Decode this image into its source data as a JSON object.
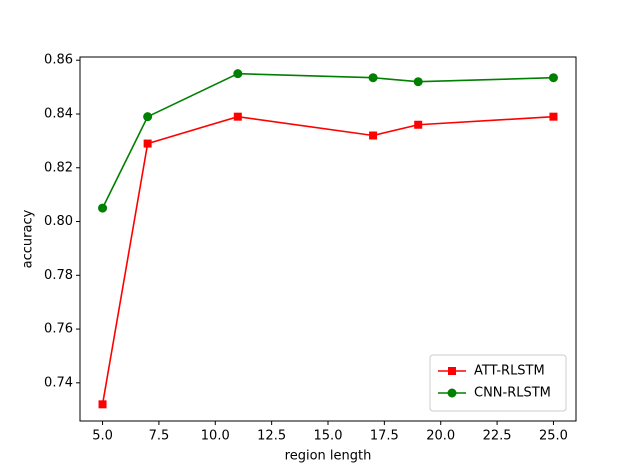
{
  "chart_data": {
    "type": "line",
    "x_label": "region length",
    "y_label": "accuracy",
    "x": [
      5,
      7,
      11,
      17,
      19,
      25
    ],
    "series": [
      {
        "name": "ATT-RLSTM",
        "color": "#ff0000",
        "marker": "square",
        "values": [
          0.732,
          0.829,
          0.839,
          0.832,
          0.836,
          0.839
        ]
      },
      {
        "name": "CNN-RLSTM",
        "color": "#008000",
        "marker": "circle",
        "values": [
          0.805,
          0.839,
          0.855,
          0.8535,
          0.852,
          0.8535
        ]
      }
    ],
    "xlim": [
      4,
      26
    ],
    "xticks": [
      {
        "value": 5,
        "label": "5.0"
      },
      {
        "value": 7.5,
        "label": "7.5"
      },
      {
        "value": 10,
        "label": "10.0"
      },
      {
        "value": 12.5,
        "label": "12.5"
      },
      {
        "value": 15,
        "label": "15.0"
      },
      {
        "value": 17.5,
        "label": "17.5"
      },
      {
        "value": 20,
        "label": "20.0"
      },
      {
        "value": 22.5,
        "label": "22.5"
      },
      {
        "value": 25,
        "label": "25.0"
      }
    ],
    "ylim": [
      0.7258,
      0.8612
    ],
    "yticks": [
      0.74,
      0.76,
      0.78,
      {
        "value": 0.8,
        "label": "0.80"
      },
      0.82,
      0.84,
      0.86
    ],
    "grid": false,
    "legend": "lower right"
  }
}
